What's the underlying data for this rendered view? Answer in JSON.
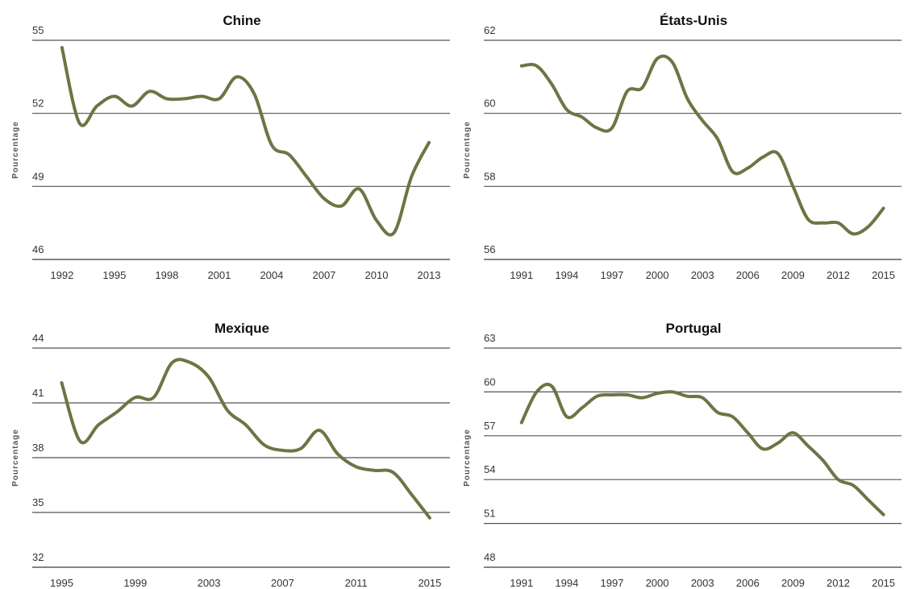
{
  "chart_data": [
    {
      "type": "line",
      "title": "Chine",
      "y_label": "Pourcentage",
      "color": "#6e7443",
      "grid": true,
      "x": [
        1992,
        1993,
        1994,
        1995,
        1996,
        1997,
        1998,
        1999,
        2000,
        2001,
        2002,
        2003,
        2004,
        2005,
        2006,
        2007,
        2008,
        2009,
        2010,
        2011,
        2012,
        2013
      ],
      "values": [
        54.7,
        51.6,
        52.3,
        52.7,
        52.3,
        52.9,
        52.6,
        52.6,
        52.7,
        52.6,
        53.5,
        52.8,
        50.7,
        50.3,
        49.4,
        48.5,
        48.2,
        48.9,
        47.6,
        47.1,
        49.4,
        50.8
      ],
      "xlim": [
        1990.3,
        2014.2
      ],
      "xticks": [
        1992,
        1995,
        1998,
        2001,
        2004,
        2007,
        2010,
        2013
      ],
      "ylim": [
        46,
        55
      ],
      "yticks": [
        46,
        49,
        52,
        55
      ]
    },
    {
      "type": "line",
      "title": "États-Unis",
      "y_label": "Pourcentage",
      "color": "#6e7443",
      "grid": true,
      "x": [
        1991,
        1992,
        1993,
        1994,
        1995,
        1996,
        1997,
        1998,
        1999,
        2000,
        2001,
        2002,
        2003,
        2004,
        2005,
        2006,
        2007,
        2008,
        2009,
        2010,
        2011,
        2012,
        2013,
        2014,
        2015
      ],
      "values": [
        61.3,
        61.3,
        60.8,
        60.1,
        59.9,
        59.6,
        59.6,
        60.6,
        60.7,
        61.5,
        61.4,
        60.4,
        59.8,
        59.3,
        58.4,
        58.5,
        58.8,
        58.9,
        58.0,
        57.1,
        57.0,
        57.0,
        56.7,
        56.9,
        57.4
      ],
      "xlim": [
        1988.5,
        2016.2
      ],
      "xticks": [
        1991,
        1994,
        1997,
        2000,
        2003,
        2006,
        2009,
        2012,
        2015
      ],
      "ylim": [
        56,
        62
      ],
      "yticks": [
        56,
        58,
        60,
        62
      ]
    },
    {
      "type": "line",
      "title": "Mexique",
      "y_label": "Pourcentage",
      "color": "#6e7443",
      "grid": true,
      "x": [
        1995,
        1996,
        1997,
        1998,
        1999,
        2000,
        2001,
        2002,
        2003,
        2004,
        2005,
        2006,
        2007,
        2008,
        2009,
        2010,
        2011,
        2012,
        2013,
        2014,
        2015
      ],
      "values": [
        42.1,
        38.9,
        39.8,
        40.5,
        41.3,
        41.3,
        43.2,
        43.2,
        42.4,
        40.6,
        39.8,
        38.7,
        38.4,
        38.5,
        39.5,
        38.2,
        37.5,
        37.3,
        37.2,
        36.0,
        34.7
      ],
      "xlim": [
        1993.4,
        2016.1
      ],
      "xticks": [
        1995,
        1999,
        2003,
        2007,
        2011,
        2015
      ],
      "ylim": [
        32,
        44
      ],
      "yticks": [
        32,
        35,
        38,
        41,
        44
      ]
    },
    {
      "type": "line",
      "title": "Portugal",
      "y_label": "Pourcentage",
      "color": "#6e7443",
      "grid": true,
      "x": [
        1991,
        1992,
        1993,
        1994,
        1995,
        1996,
        1997,
        1998,
        1999,
        2000,
        2001,
        2002,
        2003,
        2004,
        2005,
        2006,
        2007,
        2008,
        2009,
        2010,
        2011,
        2012,
        2013,
        2014,
        2015
      ],
      "values": [
        57.9,
        60.0,
        60.4,
        58.3,
        58.9,
        59.7,
        59.8,
        59.8,
        59.6,
        59.9,
        60.0,
        59.7,
        59.6,
        58.6,
        58.3,
        57.2,
        56.1,
        56.5,
        57.2,
        56.3,
        55.3,
        54.0,
        53.6,
        52.6,
        51.6
      ],
      "xlim": [
        1988.5,
        2016.2
      ],
      "xticks": [
        1991,
        1994,
        1997,
        2000,
        2003,
        2006,
        2009,
        2012,
        2015
      ],
      "ylim": [
        48,
        63
      ],
      "yticks": [
        48,
        51,
        54,
        57,
        60,
        63
      ]
    }
  ]
}
